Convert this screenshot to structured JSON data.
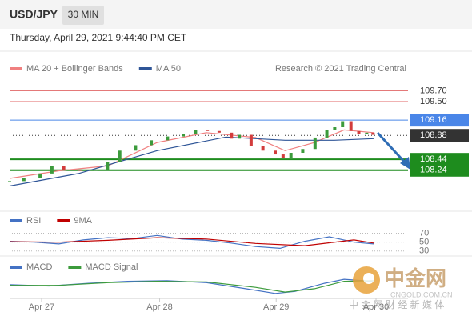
{
  "header": {
    "symbol": "USD/JPY",
    "interval": "30 MIN",
    "timestamp": "Thursday, April 29, 2021 9:44:40 PM CET"
  },
  "chart_data": [
    {
      "type": "candlestick",
      "credit": "Research © 2021 Trading Central",
      "xlim": [
        0,
        81
      ],
      "ylim": [
        107.62,
        109.97
      ],
      "xticks": [
        {
          "value": 6.5,
          "label": "Apr 27"
        },
        {
          "value": 30.5,
          "label": "Apr 28"
        },
        {
          "value": 54.2,
          "label": "Apr 29"
        },
        {
          "value": 74.5,
          "label": "Apr 30"
        }
      ],
      "up_color": "#3c9b3c",
      "down_color": "#d23c3c",
      "x": [
        0,
        2.9,
        6.2,
        8.6,
        11,
        14.3,
        17.5,
        19.9,
        22.4,
        25.6,
        28.8,
        32.1,
        35.3,
        37.8,
        40.2,
        42.6,
        45.1,
        46.7,
        49.1,
        51.5,
        54,
        55.6,
        57.2,
        59.6,
        62.1,
        64.5,
        66.1,
        67.7,
        69.4,
        71,
        72.6,
        73.9
      ],
      "values": [
        108.04,
        108.09,
        108.18,
        108.32,
        108.25,
        108.23,
        108.25,
        108.39,
        108.6,
        108.7,
        108.79,
        108.86,
        108.91,
        108.98,
        108.96,
        108.93,
        108.82,
        108.89,
        108.68,
        108.6,
        108.53,
        108.46,
        108.56,
        108.63,
        108.84,
        108.98,
        109.03,
        109.14,
        108.96,
        108.91,
        108.93,
        108.89
      ],
      "series": [
        {
          "name": "MA 20 + Bollinger Bands",
          "color": "#f08080",
          "x": [
            0,
            10,
            20,
            30,
            40,
            50,
            56,
            62,
            68,
            74
          ],
          "values": [
            108.09,
            108.23,
            108.32,
            108.75,
            108.93,
            108.84,
            108.6,
            108.75,
            108.98,
            108.93
          ]
        },
        {
          "name": "MA 50",
          "color": "#2f5597",
          "x": [
            0,
            14,
            30,
            44,
            56,
            66,
            74
          ],
          "values": [
            107.95,
            108.18,
            108.6,
            108.85,
            108.79,
            108.79,
            108.82
          ]
        }
      ],
      "levels": [
        {
          "value": 109.7,
          "label": "109.70",
          "color": "#e06666",
          "style": "text"
        },
        {
          "value": 109.5,
          "label": "109.50",
          "color": "#e06666",
          "style": "text"
        },
        {
          "value": 109.16,
          "color": "#4a86e8",
          "style": "box"
        },
        {
          "value": 108.88,
          "color": "#333333",
          "style": "dotted"
        },
        {
          "value": 108.44,
          "color": "#1e8c1e",
          "style": "thick"
        },
        {
          "value": 108.24,
          "color": "#1e8c1e",
          "style": "thick"
        }
      ]
    },
    {
      "type": "line",
      "xlim": [
        0,
        81
      ],
      "ylim": [
        26,
        80
      ],
      "yticks": [
        70,
        50,
        30
      ],
      "series": [
        {
          "name": "RSI",
          "color": "#4472c4",
          "x": [
            0,
            5,
            10,
            15,
            20,
            25,
            30,
            35,
            40,
            45,
            50,
            55,
            60,
            65,
            70,
            74
          ],
          "values": [
            52,
            50,
            46,
            55,
            60,
            58,
            65,
            57,
            54,
            48,
            40,
            36,
            52,
            62,
            50,
            46
          ]
        },
        {
          "name": "9MA",
          "color": "#c00000",
          "x": [
            0,
            10,
            20,
            30,
            40,
            50,
            60,
            70,
            74
          ],
          "values": [
            51,
            50,
            54,
            60,
            57,
            47,
            42,
            55,
            48
          ]
        }
      ]
    },
    {
      "type": "line",
      "xlim": [
        0,
        81
      ],
      "ylim": [
        -0.8,
        0.8
      ],
      "series": [
        {
          "name": "MACD",
          "color": "#4472c4",
          "x": [
            0,
            8,
            16,
            24,
            32,
            40,
            48,
            54,
            58,
            64,
            68,
            72,
            74
          ],
          "values": [
            0.1,
            0.0,
            0.2,
            0.35,
            0.4,
            0.25,
            -0.2,
            -0.55,
            -0.4,
            0.2,
            0.5,
            0.4,
            0.3
          ]
        },
        {
          "name": "MACD Signal",
          "color": "#3c9b3c",
          "x": [
            0,
            10,
            20,
            30,
            40,
            50,
            56,
            62,
            68,
            74
          ],
          "values": [
            0.05,
            0.05,
            0.25,
            0.35,
            0.3,
            -0.1,
            -0.45,
            -0.2,
            0.35,
            0.4
          ]
        }
      ]
    }
  ],
  "watermark": {
    "brand": "中金网",
    "domain": "CNGOLD.COM.CN",
    "tagline": "中 金 网 财 经 新 媒 体"
  }
}
